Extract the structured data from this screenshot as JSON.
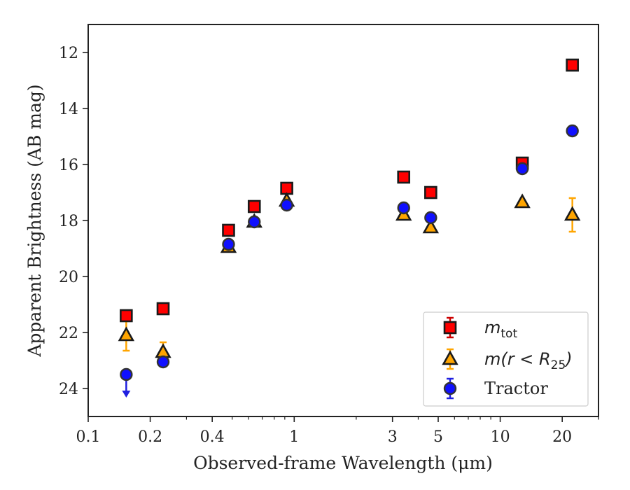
{
  "chart_data": {
    "type": "scatter",
    "title": "",
    "xlabel": "Observed-frame Wavelength (μm)",
    "ylabel": "Apparent Brightness (AB mag)",
    "xscale": "log",
    "xlim": [
      0.1,
      30
    ],
    "ylim": [
      25,
      11
    ],
    "y_inverted": true,
    "xticks": [
      {
        "value": 0.1,
        "label": "0.1"
      },
      {
        "value": 0.2,
        "label": "0.2"
      },
      {
        "value": 0.4,
        "label": "0.4"
      },
      {
        "value": 1,
        "label": "1"
      },
      {
        "value": 3,
        "label": "3"
      },
      {
        "value": 5,
        "label": "5"
      },
      {
        "value": 10,
        "label": "10"
      },
      {
        "value": 20,
        "label": "20"
      }
    ],
    "yticks": [
      {
        "value": 12,
        "label": "12"
      },
      {
        "value": 14,
        "label": "14"
      },
      {
        "value": 16,
        "label": "16"
      },
      {
        "value": 18,
        "label": "18"
      },
      {
        "value": 20,
        "label": "20"
      },
      {
        "value": 22,
        "label": "22"
      },
      {
        "value": 24,
        "label": "24"
      }
    ],
    "legend_position": "lower-right",
    "series": [
      {
        "name": "m_tot",
        "legend_main": "m",
        "legend_sub": "tot",
        "marker": "square",
        "color": "#ff0000",
        "errorbar_color": "#cc0000",
        "points": [
          {
            "x": 0.153,
            "y": 21.4,
            "yerr": 0.05
          },
          {
            "x": 0.231,
            "y": 21.15,
            "yerr": 0.05
          },
          {
            "x": 0.48,
            "y": 18.35,
            "yerr": 0.05
          },
          {
            "x": 0.64,
            "y": 17.5,
            "yerr": 0.05
          },
          {
            "x": 0.92,
            "y": 16.85,
            "yerr": 0.05
          },
          {
            "x": 3.4,
            "y": 16.45,
            "yerr": 0.05
          },
          {
            "x": 4.6,
            "y": 17.0,
            "yerr": 0.05
          },
          {
            "x": 12.8,
            "y": 15.95,
            "yerr": 0.08
          },
          {
            "x": 22.4,
            "y": 12.45,
            "yerr": 0.05
          }
        ]
      },
      {
        "name": "m(r < R25)",
        "legend_main": "m(r < R",
        "legend_sub": "25",
        "legend_end": ")",
        "marker": "triangle",
        "color": "#ffa500",
        "errorbar_color": "#ffa500",
        "points": [
          {
            "x": 0.153,
            "y": 22.1,
            "yerr": 0.55
          },
          {
            "x": 0.231,
            "y": 22.7,
            "yerr": 0.35
          },
          {
            "x": 0.48,
            "y": 18.95,
            "yerr": 0.05
          },
          {
            "x": 0.64,
            "y": 18.05,
            "yerr": 0.05
          },
          {
            "x": 0.92,
            "y": 17.3,
            "yerr": 0.05
          },
          {
            "x": 3.4,
            "y": 17.8,
            "yerr": 0.05
          },
          {
            "x": 4.6,
            "y": 18.25,
            "yerr": 0.05
          },
          {
            "x": 12.8,
            "y": 17.35,
            "yerr": 0.05
          },
          {
            "x": 22.4,
            "y": 17.8,
            "yerr": 0.6
          }
        ]
      },
      {
        "name": "Tractor",
        "legend_main": "Tractor",
        "marker": "circle",
        "color": "#1010ff",
        "errorbar_color": "#2020e0",
        "points": [
          {
            "x": 0.153,
            "y": 23.5,
            "upper_limit": true
          },
          {
            "x": 0.231,
            "y": 23.05,
            "yerr": 0.05
          },
          {
            "x": 0.48,
            "y": 18.85,
            "yerr": 0.05
          },
          {
            "x": 0.64,
            "y": 18.05,
            "yerr": 0.05
          },
          {
            "x": 0.92,
            "y": 17.45,
            "yerr": 0.05
          },
          {
            "x": 3.4,
            "y": 17.55,
            "yerr": 0.05
          },
          {
            "x": 4.6,
            "y": 17.9,
            "yerr": 0.05
          },
          {
            "x": 12.8,
            "y": 16.15,
            "yerr": 0.05
          },
          {
            "x": 22.4,
            "y": 14.8,
            "yerr": 0.05
          }
        ]
      }
    ]
  }
}
